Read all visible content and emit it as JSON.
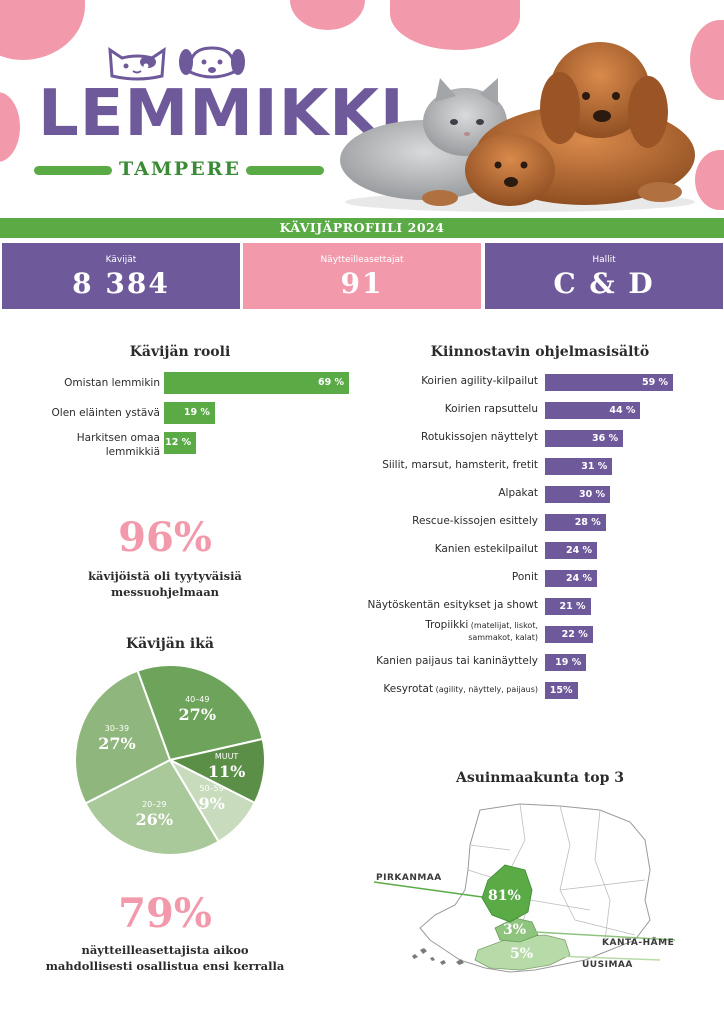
{
  "logo": {
    "word": "LEMMIKKI",
    "sub": "TAMPERE"
  },
  "band_title": "KÄVIJÄPROFIILI 2024",
  "colors": {
    "purple": "#6e5a9b",
    "pink": "#f29aac",
    "green": "#5aaa46",
    "dark_green": "#3b8a36"
  },
  "stats": [
    {
      "label": "Kävijät",
      "value": "8 384"
    },
    {
      "label": "Näytteilleasettajat",
      "value": "91"
    },
    {
      "label": "Hallit",
      "value": "C & D"
    }
  ],
  "satisfaction": {
    "value": "96%",
    "text_line1": "kävijöistä oli tyytyväisiä",
    "text_line2": "messuohjelmaan"
  },
  "exhibitors": {
    "value": "79%",
    "text_line1": "näytteilleasettajista aikoo",
    "text_line2": "mahdollisesti osallistua ensi kerralla"
  },
  "chart_data": [
    {
      "type": "bar",
      "orientation": "horizontal",
      "title": "Kävijän rooli",
      "categories": [
        "Omistan lemmikin",
        "Olen eläinten ystävä",
        "Harkitsen omaa lemmikkiä"
      ],
      "category_lines": [
        [
          "Omistan lemmikin"
        ],
        [
          "Olen eläinten ystävä"
        ],
        [
          "Harkitsen omaa",
          "lemmikkiä"
        ]
      ],
      "values": [
        69,
        19,
        12
      ],
      "value_labels": [
        "69 %",
        "19 %",
        "12 %"
      ],
      "color": "#5aaa46"
    },
    {
      "type": "bar",
      "orientation": "horizontal",
      "title": "Kiinnostavin ohjelmasisältö",
      "categories": [
        {
          "main": "Koirien agility-kilpailut",
          "note": ""
        },
        {
          "main": "Koirien rapsuttelu",
          "note": ""
        },
        {
          "main": "Rotukissojen näyttelyt",
          "note": ""
        },
        {
          "main": "Siilit, marsut, hamsterit, fretit",
          "note": ""
        },
        {
          "main": "Alpakat",
          "note": ""
        },
        {
          "main": "Rescue-kissojen esittely",
          "note": ""
        },
        {
          "main": "Kanien estekilpailut",
          "note": ""
        },
        {
          "main": "Ponit",
          "note": ""
        },
        {
          "main": "Näytöskentän esitykset ja showt",
          "note": ""
        },
        {
          "main": "Tropiikki",
          "note": "(matelijat, liskot,",
          "note2": "sammakot, kalat)"
        },
        {
          "main": "Kanien paijaus tai kaninäyttely",
          "note": ""
        },
        {
          "main": "Kesyrotat",
          "note": "(agility, näyttely, paijaus)"
        }
      ],
      "values": [
        59,
        44,
        36,
        31,
        30,
        28,
        24,
        24,
        21,
        22,
        19,
        15
      ],
      "value_labels": [
        "59 %",
        "44 %",
        "36 %",
        "31 %",
        "30 %",
        "28 %",
        "24 %",
        "24 %",
        "21 %",
        "22 %",
        "19 %",
        "15%"
      ],
      "color": "#6e5a9b"
    },
    {
      "type": "pie",
      "title": "Kävijän ikä",
      "slices": [
        {
          "category": "40–49",
          "value": 27,
          "label": "27%",
          "color": "#6da35a"
        },
        {
          "category": "MUUT",
          "value": 11,
          "label": "11%",
          "color": "#5b8f47"
        },
        {
          "category": "50–59",
          "value": 9,
          "label": "9%",
          "color": "#c8dcbd"
        },
        {
          "category": "20–29",
          "value": 26,
          "label": "26%",
          "color": "#a9c99a"
        },
        {
          "category": "30–39",
          "value": 27,
          "label": "27%",
          "color": "#8fb67c"
        }
      ]
    },
    {
      "type": "map",
      "title": "Asuinmaakunta top 3",
      "regions": [
        {
          "name": "PIRKANMAA",
          "value": 81,
          "label": "81%",
          "color": "#5aaa46"
        },
        {
          "name": "KANTA-HÄME",
          "value": 3,
          "label": "3%",
          "color": "#8fc47e"
        },
        {
          "name": "UUSIMAA",
          "value": 5,
          "label": "5%",
          "color": "#b7dba8"
        }
      ]
    }
  ]
}
